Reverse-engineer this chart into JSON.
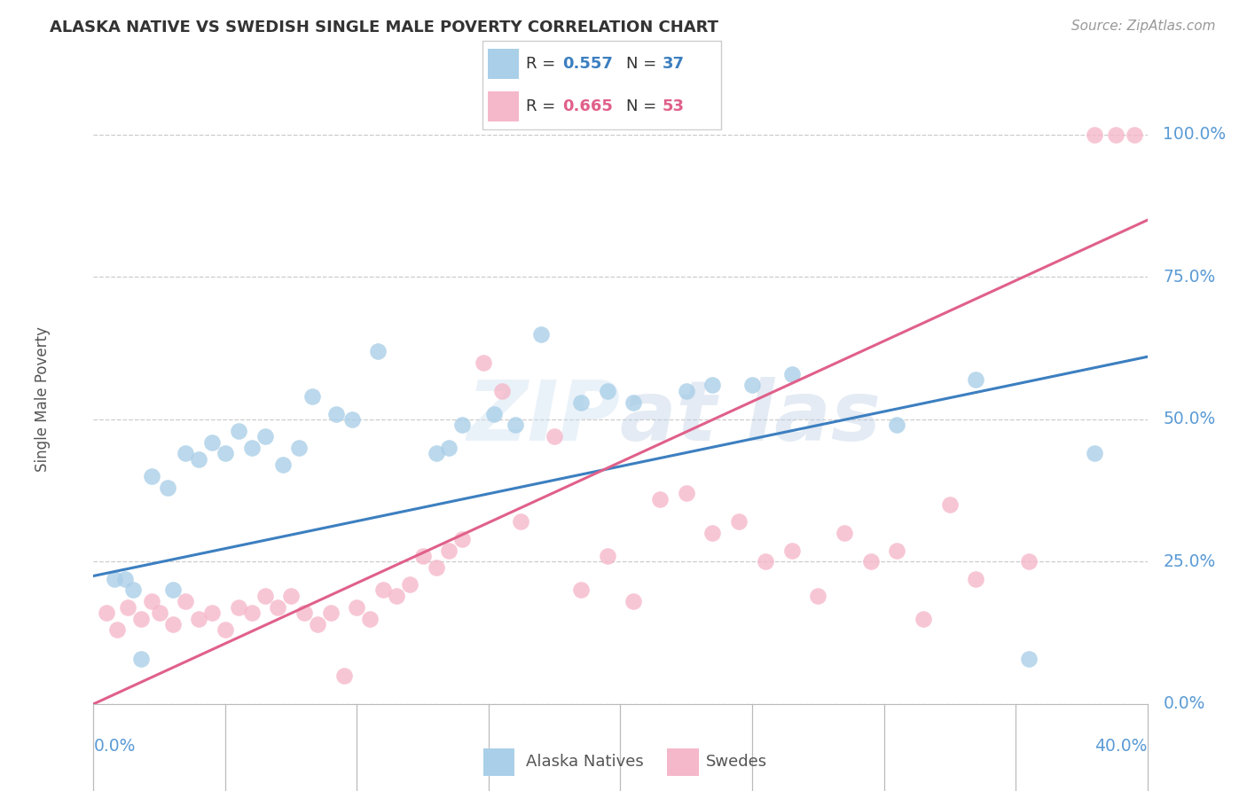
{
  "title": "ALASKA NATIVE VS SWEDISH SINGLE MALE POVERTY CORRELATION CHART",
  "source": "Source: ZipAtlas.com",
  "ylabel": "Single Male Poverty",
  "ytick_labels": [
    "0.0%",
    "25.0%",
    "50.0%",
    "75.0%",
    "100.0%"
  ],
  "ytick_values": [
    0,
    25,
    50,
    75,
    100
  ],
  "xlim": [
    0,
    40
  ],
  "ylim": [
    0,
    107
  ],
  "alaska_R": "0.557",
  "alaska_N": "37",
  "swedes_R": "0.665",
  "swedes_N": "53",
  "alaska_color": "#aacfe8",
  "swedes_color": "#f5b8ca",
  "alaska_line_color": "#3c7fc0",
  "swedes_line_color": "#e0608a",
  "alaska_line": [
    0,
    22.5,
    40,
    61
  ],
  "swedes_line": [
    0,
    0,
    40,
    85
  ],
  "background_color": "#ffffff",
  "grid_color": "#cccccc",
  "alaska_points": [
    [
      0.8,
      22
    ],
    [
      1.2,
      22
    ],
    [
      1.5,
      20
    ],
    [
      2.2,
      40
    ],
    [
      2.8,
      38
    ],
    [
      3.5,
      44
    ],
    [
      4.0,
      43
    ],
    [
      4.5,
      46
    ],
    [
      5.0,
      44
    ],
    [
      5.5,
      48
    ],
    [
      6.0,
      45
    ],
    [
      6.5,
      47
    ],
    [
      7.2,
      42
    ],
    [
      7.8,
      45
    ],
    [
      8.3,
      54
    ],
    [
      9.2,
      51
    ],
    [
      9.8,
      50
    ],
    [
      10.8,
      62
    ],
    [
      13.0,
      44
    ],
    [
      13.5,
      45
    ],
    [
      14.0,
      49
    ],
    [
      15.2,
      51
    ],
    [
      16.0,
      49
    ],
    [
      17.0,
      65
    ],
    [
      18.5,
      53
    ],
    [
      19.5,
      55
    ],
    [
      20.5,
      53
    ],
    [
      22.5,
      55
    ],
    [
      23.5,
      56
    ],
    [
      25.0,
      56
    ],
    [
      26.5,
      58
    ],
    [
      30.5,
      49
    ],
    [
      33.5,
      57
    ],
    [
      35.5,
      8
    ],
    [
      38.0,
      44
    ],
    [
      1.8,
      8
    ],
    [
      3.0,
      20
    ]
  ],
  "swedes_points": [
    [
      0.5,
      16
    ],
    [
      0.9,
      13
    ],
    [
      1.3,
      17
    ],
    [
      1.8,
      15
    ],
    [
      2.2,
      18
    ],
    [
      2.5,
      16
    ],
    [
      3.0,
      14
    ],
    [
      3.5,
      18
    ],
    [
      4.0,
      15
    ],
    [
      4.5,
      16
    ],
    [
      5.0,
      13
    ],
    [
      5.5,
      17
    ],
    [
      6.0,
      16
    ],
    [
      6.5,
      19
    ],
    [
      7.0,
      17
    ],
    [
      7.5,
      19
    ],
    [
      8.0,
      16
    ],
    [
      8.5,
      14
    ],
    [
      9.0,
      16
    ],
    [
      9.5,
      5
    ],
    [
      10.0,
      17
    ],
    [
      10.5,
      15
    ],
    [
      11.0,
      20
    ],
    [
      11.5,
      19
    ],
    [
      12.0,
      21
    ],
    [
      12.5,
      26
    ],
    [
      13.0,
      24
    ],
    [
      13.5,
      27
    ],
    [
      14.0,
      29
    ],
    [
      14.8,
      60
    ],
    [
      15.5,
      55
    ],
    [
      16.2,
      32
    ],
    [
      17.5,
      47
    ],
    [
      18.5,
      20
    ],
    [
      19.5,
      26
    ],
    [
      20.5,
      18
    ],
    [
      21.5,
      36
    ],
    [
      22.5,
      37
    ],
    [
      23.5,
      30
    ],
    [
      24.5,
      32
    ],
    [
      25.5,
      25
    ],
    [
      26.5,
      27
    ],
    [
      27.5,
      19
    ],
    [
      28.5,
      30
    ],
    [
      29.5,
      25
    ],
    [
      30.5,
      27
    ],
    [
      31.5,
      15
    ],
    [
      32.5,
      35
    ],
    [
      33.5,
      22
    ],
    [
      35.5,
      25
    ],
    [
      38.0,
      100
    ],
    [
      38.8,
      100
    ],
    [
      39.5,
      100
    ]
  ]
}
